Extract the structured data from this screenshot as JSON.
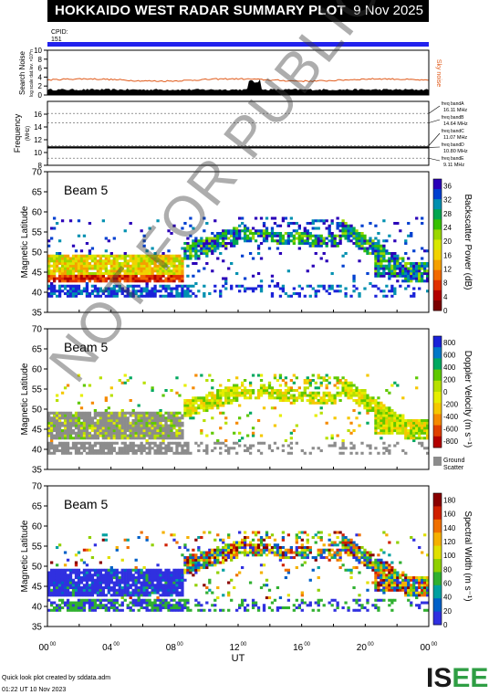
{
  "header": {
    "title": "HOKKAIDO WEST RADAR SUMMARY PLOT",
    "date": "9 Nov 2025"
  },
  "cpid": {
    "label": "CPID:",
    "value": "151"
  },
  "watermark": "NOT FOR PUBLICATION",
  "footer": {
    "credit": "Quick look plot created by sddata.adm",
    "timestamp": "01:22 UT 10 Nov 2023"
  },
  "logo": {
    "text": "ISEE",
    "colors": [
      "#1a1a1a",
      "#2f9e44"
    ]
  },
  "chart_data": [
    {
      "type": "line",
      "ylabel": "Search Noise",
      "ylabel_sub": "log scale dat.lev. ×10^n",
      "ylim": [
        0,
        10
      ],
      "yticks": [
        0,
        2,
        4,
        6,
        8,
        10
      ],
      "series": [
        {
          "name": "Sky noise",
          "color": "#e05a1a",
          "level": 3.2
        }
      ],
      "bar_level": 1.0
    },
    {
      "type": "line",
      "ylabel": "Frequency",
      "ylabel_sub": "(MHz)",
      "ylim": [
        8,
        18
      ],
      "yticks": [
        8,
        10,
        12,
        14,
        16
      ],
      "bands": [
        {
          "label": "freq bandA",
          "freq": "16.11 MHz",
          "value": 16.11
        },
        {
          "label": "freq bandB",
          "freq": "14.64 MHz",
          "value": 14.64
        },
        {
          "label": "freq bandC",
          "freq": "11.07 MHz",
          "value": 11.07
        },
        {
          "label": "freq bandD",
          "freq": "10.80 MHz",
          "value": 10.8
        },
        {
          "label": "freq bandE",
          "freq": "9.11 MHz",
          "value": 9.11
        }
      ],
      "active_value": 10.8
    },
    {
      "type": "heatmap",
      "beam": "Beam  5",
      "ylabel": "Magnetic Latitude",
      "ylim": [
        35,
        70
      ],
      "yticks": [
        35,
        40,
        45,
        50,
        55,
        60,
        65,
        70
      ],
      "colorbar": {
        "label": "Backscatter Power (dB)",
        "ticks": [
          "0",
          "4",
          "8",
          "12",
          "16",
          "20",
          "24",
          "28",
          "32",
          "36"
        ],
        "vmin": 0,
        "vmax": 38
      },
      "palette": "power"
    },
    {
      "type": "heatmap",
      "beam": "Beam  5",
      "ylabel": "Magnetic Latitude",
      "ylim": [
        35,
        70
      ],
      "yticks": [
        35,
        40,
        45,
        50,
        55,
        60,
        65,
        70
      ],
      "colorbar": {
        "label": "Doppler Velocity (m s⁻¹)",
        "ticks": [
          "-800",
          "-600",
          "-400",
          "-200",
          "0",
          "200",
          "400",
          "600",
          "800"
        ],
        "vmin": -900,
        "vmax": 900,
        "ground_label": "Ground Scatter"
      },
      "palette": "velocity"
    },
    {
      "type": "heatmap",
      "beam": "Beam  5",
      "ylabel": "Magnetic Latitude",
      "ylim": [
        35,
        70
      ],
      "yticks": [
        35,
        40,
        45,
        50,
        55,
        60,
        65,
        70
      ],
      "colorbar": {
        "label": "Spectral Width (m s⁻¹)",
        "ticks": [
          "0",
          "20",
          "40",
          "60",
          "80",
          "100",
          "120",
          "140",
          "160",
          "180"
        ],
        "vmin": 0,
        "vmax": 190
      },
      "palette": "width"
    }
  ],
  "xaxis": {
    "label": "UT",
    "ticks": [
      "00",
      "04",
      "08",
      "12",
      "16",
      "20",
      "00"
    ],
    "superscript": "00",
    "xlim": [
      0,
      24
    ]
  }
}
